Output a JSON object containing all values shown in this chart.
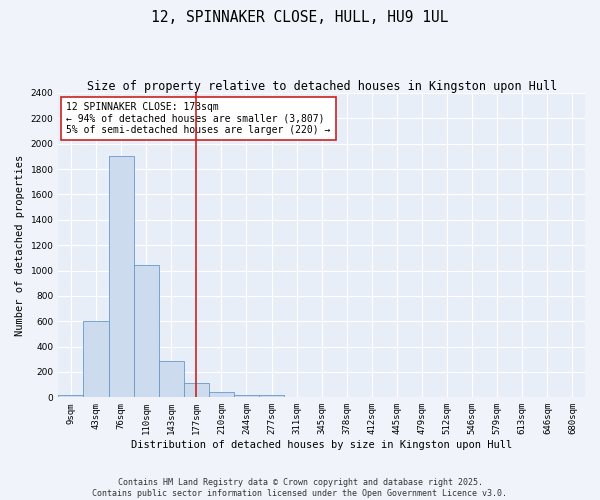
{
  "title": "12, SPINNAKER CLOSE, HULL, HU9 1UL",
  "subtitle": "Size of property relative to detached houses in Kingston upon Hull",
  "xlabel": "Distribution of detached houses by size in Kingston upon Hull",
  "ylabel": "Number of detached properties",
  "footer_line1": "Contains HM Land Registry data © Crown copyright and database right 2025.",
  "footer_line2": "Contains public sector information licensed under the Open Government Licence v3.0.",
  "categories": [
    "9sqm",
    "43sqm",
    "76sqm",
    "110sqm",
    "143sqm",
    "177sqm",
    "210sqm",
    "244sqm",
    "277sqm",
    "311sqm",
    "345sqm",
    "378sqm",
    "412sqm",
    "445sqm",
    "479sqm",
    "512sqm",
    "546sqm",
    "579sqm",
    "613sqm",
    "646sqm",
    "680sqm"
  ],
  "values": [
    15,
    600,
    1900,
    1040,
    290,
    110,
    45,
    20,
    15,
    5,
    2,
    2,
    0,
    0,
    0,
    0,
    0,
    0,
    0,
    0,
    0
  ],
  "bar_color": "#ccdcee",
  "bar_edge_color": "#6699cc",
  "bar_edge_width": 0.6,
  "red_line_index": 5,
  "red_line_color": "#cc2222",
  "annotation_text": "12 SPINNAKER CLOSE: 173sqm\n← 94% of detached houses are smaller (3,807)\n5% of semi-detached houses are larger (220) →",
  "annotation_box_color": "#ffffff",
  "annotation_edge_color": "#cc2222",
  "ylim": [
    0,
    2400
  ],
  "yticks": [
    0,
    200,
    400,
    600,
    800,
    1000,
    1200,
    1400,
    1600,
    1800,
    2000,
    2200,
    2400
  ],
  "background_color": "#f0f4fa",
  "plot_bg_color": "#e8eef8",
  "grid_color": "#ffffff",
  "title_fontsize": 10.5,
  "subtitle_fontsize": 8.5,
  "axis_label_fontsize": 7.5,
  "tick_fontsize": 6.5,
  "annotation_fontsize": 7,
  "footer_fontsize": 6
}
